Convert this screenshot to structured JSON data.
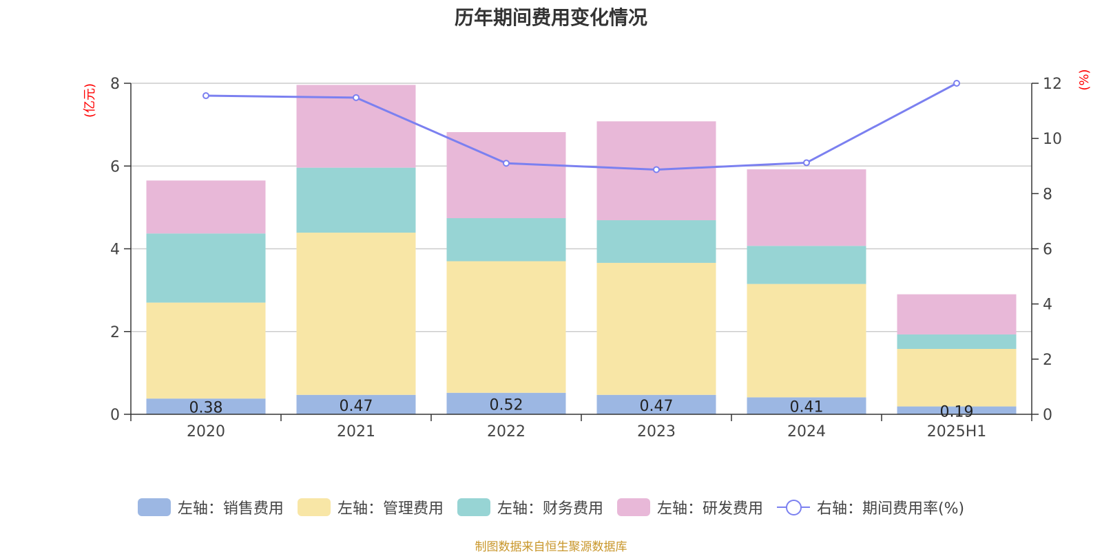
{
  "title": "历年期间费用变化情况",
  "source": "制图数据来自恒生聚源数据库",
  "colors": {
    "sales": "#9cb7e3",
    "admin": "#f8e6a6",
    "finance": "#97d4d4",
    "rd": "#e8b8d8",
    "rate": "#7b80f0",
    "axis_unit": "#ff0000"
  },
  "chart_data": {
    "type": "bar",
    "stacked": true,
    "categories": [
      "2020",
      "2021",
      "2022",
      "2023",
      "2024",
      "2025H1"
    ],
    "left_axis": {
      "unit": "(亿元)",
      "ylim": [
        0,
        8
      ],
      "ticks": [
        "0",
        "2",
        "4",
        "6",
        "8"
      ]
    },
    "right_axis": {
      "unit": "(%)",
      "ylim": [
        0,
        12
      ],
      "ticks": [
        "0",
        "2",
        "4",
        "6",
        "8",
        "10",
        "12"
      ]
    },
    "series": [
      {
        "name": "左轴：销售费用",
        "type": "bar",
        "axis": "left",
        "values": [
          0.38,
          0.47,
          0.52,
          0.47,
          0.41,
          0.19
        ],
        "labels": [
          "0.38",
          "0.47",
          "0.52",
          "0.47",
          "0.41",
          "0.19"
        ]
      },
      {
        "name": "左轴：管理费用",
        "type": "bar",
        "axis": "left",
        "values": [
          2.32,
          3.92,
          3.18,
          3.19,
          2.74,
          1.39
        ]
      },
      {
        "name": "左轴：财务费用",
        "type": "bar",
        "axis": "left",
        "values": [
          1.67,
          1.57,
          1.04,
          1.03,
          0.92,
          0.35
        ]
      },
      {
        "name": "左轴：研发费用",
        "type": "bar",
        "axis": "left",
        "values": [
          1.28,
          2.0,
          2.08,
          2.39,
          1.85,
          0.97
        ]
      },
      {
        "name": "右轴：期间费用率(%)",
        "type": "line",
        "axis": "right",
        "values": [
          11.55,
          11.48,
          9.1,
          8.87,
          9.12,
          12.0
        ]
      }
    ],
    "grid": true,
    "legend_position": "bottom"
  }
}
